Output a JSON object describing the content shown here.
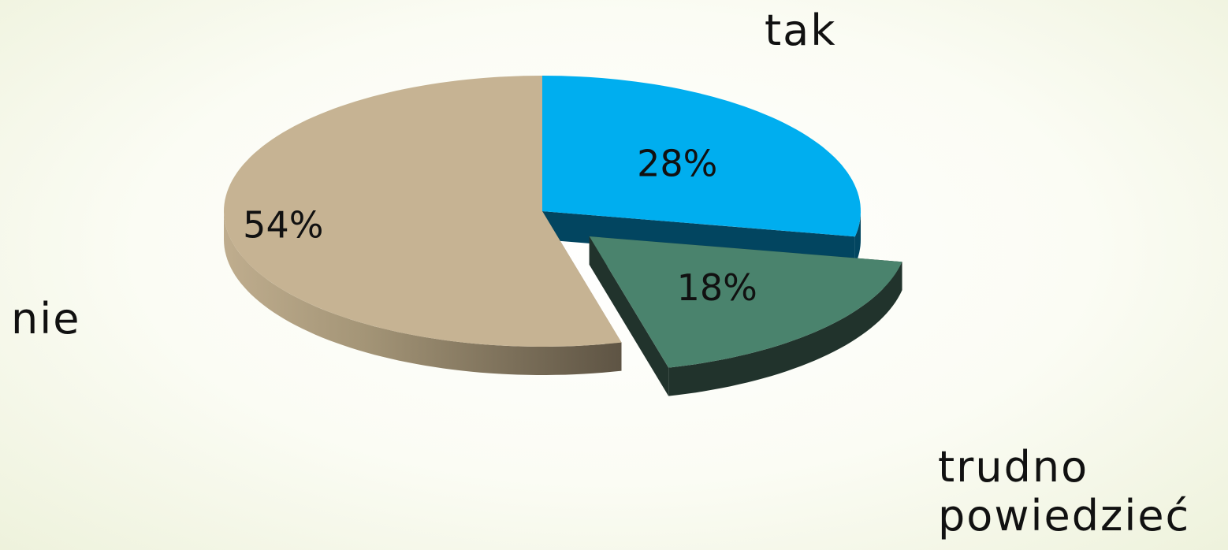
{
  "chart_data": {
    "type": "pie",
    "style": "3d-exploded",
    "categories": [
      "tak",
      "trudno powiedzieć",
      "nie"
    ],
    "values": [
      28,
      18,
      54
    ],
    "value_labels": [
      "28%",
      "18%",
      "54%"
    ],
    "exploded": [
      "trudno powiedzieć"
    ],
    "colors": [
      "#00aeef",
      "#4a836d",
      "#c6b393"
    ],
    "side_colors": [
      "#024560",
      "#21332c",
      "#8b7c63"
    ],
    "title": "",
    "legend": "none"
  },
  "labels": {
    "tak": "tak",
    "nie": "nie",
    "trudno_line1": "trudno",
    "trudno_line2": "powiedzieć"
  }
}
